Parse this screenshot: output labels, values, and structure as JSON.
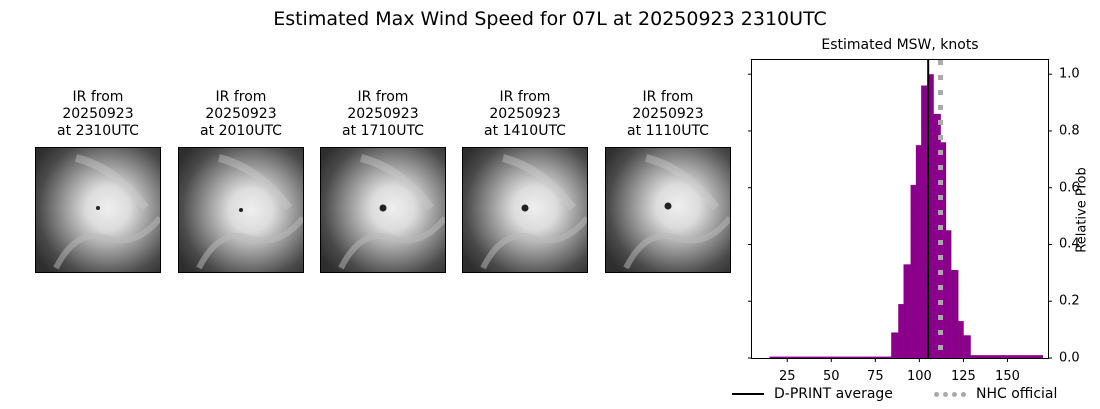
{
  "suptitle": "Estimated Max Wind Speed for 07L at 20250923 2310UTC",
  "panels": [
    {
      "title": "IR from\n20250923\nat 2310UTC",
      "eye": "ragged"
    },
    {
      "title": "IR from\n20250923\nat 2010UTC",
      "eye": "small"
    },
    {
      "title": "IR from\n20250923\nat 1710UTC",
      "eye": "clear"
    },
    {
      "title": "IR from\n20250923\nat 1410UTC",
      "eye": "clear"
    },
    {
      "title": "IR from\n20250923\nat 1110UTC",
      "eye": "clear"
    }
  ],
  "chart_data": {
    "type": "bar",
    "title": "Estimated MSW, knots",
    "xlabel": "",
    "ylabel": "Relative Prob",
    "xlim": [
      5,
      173
    ],
    "ylim": [
      0,
      1.05
    ],
    "xticks": [
      25,
      50,
      75,
      100,
      125,
      150
    ],
    "yticks": [
      "0.0",
      "0.2",
      "0.4",
      "0.6",
      "0.8",
      "1.0"
    ],
    "bar_color": "#8b008b",
    "bin_width": 3.4,
    "bins": [
      {
        "x0": 15,
        "x1": 84,
        "value": 0.005
      },
      {
        "x0": 84,
        "x1": 88,
        "value": 0.09
      },
      {
        "x0": 88,
        "x1": 91,
        "value": 0.19
      },
      {
        "x0": 91,
        "x1": 95,
        "value": 0.33
      },
      {
        "x0": 95,
        "x1": 98,
        "value": 0.61
      },
      {
        "x0": 98,
        "x1": 101,
        "value": 0.75
      },
      {
        "x0": 101,
        "x1": 105,
        "value": 0.96
      },
      {
        "x0": 105,
        "x1": 108,
        "value": 1.0
      },
      {
        "x0": 108,
        "x1": 112,
        "value": 0.86
      },
      {
        "x0": 112,
        "x1": 115,
        "value": 0.76
      },
      {
        "x0": 115,
        "x1": 118,
        "value": 0.45
      },
      {
        "x0": 118,
        "x1": 122,
        "value": 0.31
      },
      {
        "x0": 122,
        "x1": 125,
        "value": 0.13
      },
      {
        "x0": 125,
        "x1": 129,
        "value": 0.08
      },
      {
        "x0": 129,
        "x1": 170,
        "value": 0.01
      }
    ],
    "lines": [
      {
        "name": "D-PRINT average",
        "x": 105,
        "color": "#000000",
        "style": "solid"
      },
      {
        "name": "NHC official",
        "x": 112,
        "color": "#aaaaaa",
        "style": "dotted"
      }
    ],
    "legend": [
      "D-PRINT average",
      "NHC official"
    ],
    "legend_position": "below",
    "grid": false
  }
}
